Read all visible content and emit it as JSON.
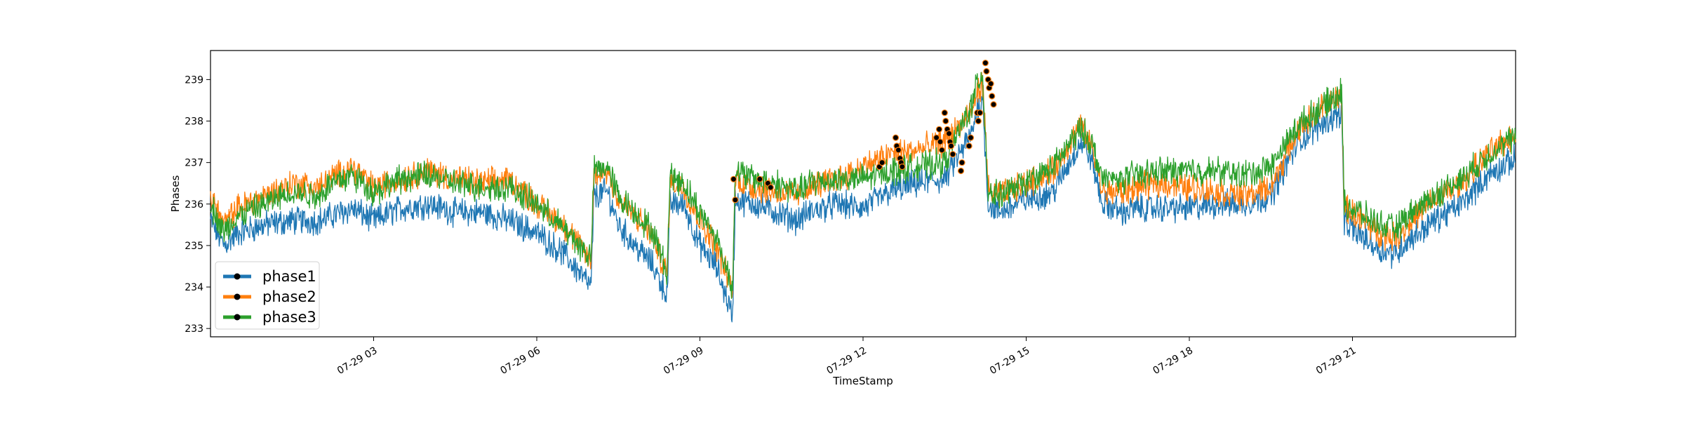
{
  "chart_data": {
    "type": "line",
    "title": "",
    "xlabel": "TimeStamp",
    "ylabel": "Phases",
    "x_range": [
      "07-29 00:00",
      "07-30 00:00"
    ],
    "ylim": [
      232.8,
      239.7
    ],
    "x_ticks": [
      {
        "label": "07-29 03",
        "hour": 3
      },
      {
        "label": "07-29 06",
        "hour": 6
      },
      {
        "label": "07-29 09",
        "hour": 9
      },
      {
        "label": "07-29 12",
        "hour": 12
      },
      {
        "label": "07-29 15",
        "hour": 15
      },
      {
        "label": "07-29 18",
        "hour": 18
      },
      {
        "label": "07-29 21",
        "hour": 21
      }
    ],
    "y_ticks": [
      233,
      234,
      235,
      236,
      237,
      238,
      239
    ],
    "grid": false,
    "legend": {
      "position": "lower-left"
    },
    "series": [
      {
        "name": "phase1",
        "color": "#1f77b4",
        "points": [
          [
            0.0,
            235.6
          ],
          [
            0.25,
            235.0
          ],
          [
            0.5,
            235.3
          ],
          [
            1.0,
            235.5
          ],
          [
            1.5,
            235.6
          ],
          [
            2.0,
            235.6
          ],
          [
            2.2,
            235.7
          ],
          [
            2.6,
            235.9
          ],
          [
            3.0,
            235.6
          ],
          [
            3.5,
            235.9
          ],
          [
            4.0,
            236.0
          ],
          [
            4.5,
            235.8
          ],
          [
            5.0,
            235.8
          ],
          [
            5.5,
            235.6
          ],
          [
            6.0,
            235.3
          ],
          [
            6.5,
            234.8
          ],
          [
            7.0,
            234.0
          ],
          [
            7.05,
            236.2
          ],
          [
            7.3,
            236.3
          ],
          [
            7.5,
            235.5
          ],
          [
            7.8,
            235.0
          ],
          [
            8.1,
            234.6
          ],
          [
            8.4,
            233.8
          ],
          [
            8.45,
            236.0
          ],
          [
            8.7,
            236.0
          ],
          [
            9.0,
            235.0
          ],
          [
            9.3,
            234.5
          ],
          [
            9.6,
            233.3
          ],
          [
            9.65,
            236.1
          ],
          [
            10.0,
            236.0
          ],
          [
            10.4,
            235.8
          ],
          [
            10.8,
            235.6
          ],
          [
            11.0,
            235.8
          ],
          [
            11.5,
            236.0
          ],
          [
            12.0,
            235.9
          ],
          [
            12.5,
            236.3
          ],
          [
            13.0,
            236.5
          ],
          [
            13.5,
            236.6
          ],
          [
            14.0,
            237.7
          ],
          [
            14.1,
            238.3
          ],
          [
            14.2,
            238.5
          ],
          [
            14.3,
            236.0
          ],
          [
            14.5,
            235.8
          ],
          [
            15.0,
            236.1
          ],
          [
            15.5,
            236.3
          ],
          [
            16.0,
            237.5
          ],
          [
            16.2,
            237.1
          ],
          [
            16.4,
            236.0
          ],
          [
            16.8,
            235.8
          ],
          [
            17.0,
            235.9
          ],
          [
            17.5,
            235.9
          ],
          [
            18.0,
            235.9
          ],
          [
            18.5,
            236.0
          ],
          [
            19.0,
            236.0
          ],
          [
            19.5,
            236.2
          ],
          [
            20.0,
            237.5
          ],
          [
            20.5,
            238.0
          ],
          [
            20.8,
            238.2
          ],
          [
            20.85,
            235.5
          ],
          [
            21.0,
            235.4
          ],
          [
            21.5,
            234.9
          ],
          [
            21.8,
            234.8
          ],
          [
            22.0,
            235.1
          ],
          [
            22.5,
            235.6
          ],
          [
            23.0,
            236.0
          ],
          [
            23.5,
            236.7
          ],
          [
            24.0,
            237.1
          ]
        ]
      },
      {
        "name": "phase2",
        "color": "#ff7f0e",
        "points": [
          [
            0.0,
            236.2
          ],
          [
            0.25,
            235.5
          ],
          [
            0.5,
            235.9
          ],
          [
            1.0,
            236.2
          ],
          [
            1.5,
            236.5
          ],
          [
            2.0,
            236.4
          ],
          [
            2.2,
            236.6
          ],
          [
            2.6,
            236.9
          ],
          [
            3.0,
            236.4
          ],
          [
            3.5,
            236.6
          ],
          [
            4.0,
            236.8
          ],
          [
            4.5,
            236.6
          ],
          [
            5.0,
            236.5
          ],
          [
            5.5,
            236.6
          ],
          [
            6.0,
            236.0
          ],
          [
            6.5,
            235.5
          ],
          [
            7.0,
            234.6
          ],
          [
            7.05,
            236.7
          ],
          [
            7.3,
            236.8
          ],
          [
            7.5,
            236.1
          ],
          [
            7.8,
            235.7
          ],
          [
            8.1,
            235.3
          ],
          [
            8.4,
            234.3
          ],
          [
            8.45,
            236.6
          ],
          [
            8.7,
            236.4
          ],
          [
            9.0,
            235.6
          ],
          [
            9.3,
            235.0
          ],
          [
            9.6,
            233.9
          ],
          [
            9.65,
            236.6
          ],
          [
            10.0,
            236.4
          ],
          [
            10.4,
            236.3
          ],
          [
            10.8,
            236.2
          ],
          [
            11.0,
            236.4
          ],
          [
            11.5,
            236.6
          ],
          [
            12.0,
            236.9
          ],
          [
            12.5,
            237.2
          ],
          [
            13.0,
            237.3
          ],
          [
            13.5,
            237.5
          ],
          [
            14.0,
            238.2
          ],
          [
            14.1,
            238.7
          ],
          [
            14.2,
            238.9
          ],
          [
            14.3,
            236.4
          ],
          [
            14.5,
            236.2
          ],
          [
            15.0,
            236.5
          ],
          [
            15.5,
            236.8
          ],
          [
            16.0,
            237.9
          ],
          [
            16.2,
            237.4
          ],
          [
            16.4,
            236.3
          ],
          [
            16.8,
            236.3
          ],
          [
            17.0,
            236.4
          ],
          [
            17.5,
            236.5
          ],
          [
            18.0,
            236.4
          ],
          [
            18.5,
            236.3
          ],
          [
            19.0,
            236.2
          ],
          [
            19.5,
            236.4
          ],
          [
            20.0,
            237.8
          ],
          [
            20.5,
            238.4
          ],
          [
            20.8,
            238.6
          ],
          [
            20.85,
            235.9
          ],
          [
            21.0,
            235.8
          ],
          [
            21.5,
            235.3
          ],
          [
            21.8,
            235.2
          ],
          [
            22.0,
            235.5
          ],
          [
            22.5,
            236.1
          ],
          [
            23.0,
            236.5
          ],
          [
            23.5,
            237.2
          ],
          [
            24.0,
            237.7
          ]
        ]
      },
      {
        "name": "phase3",
        "color": "#2ca02c",
        "points": [
          [
            0.0,
            236.0
          ],
          [
            0.25,
            235.3
          ],
          [
            0.5,
            235.7
          ],
          [
            1.0,
            236.0
          ],
          [
            1.5,
            236.3
          ],
          [
            2.0,
            236.2
          ],
          [
            2.2,
            236.5
          ],
          [
            2.6,
            236.7
          ],
          [
            3.0,
            236.3
          ],
          [
            3.5,
            236.6
          ],
          [
            4.0,
            236.7
          ],
          [
            4.5,
            236.5
          ],
          [
            5.0,
            236.4
          ],
          [
            5.5,
            236.4
          ],
          [
            6.0,
            236.0
          ],
          [
            6.5,
            235.4
          ],
          [
            7.0,
            234.7
          ],
          [
            7.05,
            236.8
          ],
          [
            7.3,
            236.9
          ],
          [
            7.5,
            236.2
          ],
          [
            7.8,
            235.8
          ],
          [
            8.1,
            235.4
          ],
          [
            8.4,
            234.4
          ],
          [
            8.45,
            236.7
          ],
          [
            8.7,
            236.5
          ],
          [
            9.0,
            235.8
          ],
          [
            9.3,
            235.2
          ],
          [
            9.6,
            234.0
          ],
          [
            9.65,
            236.8
          ],
          [
            10.0,
            236.6
          ],
          [
            10.4,
            236.5
          ],
          [
            10.8,
            236.3
          ],
          [
            11.0,
            236.5
          ],
          [
            11.5,
            236.6
          ],
          [
            12.0,
            236.6
          ],
          [
            12.5,
            236.8
          ],
          [
            13.0,
            236.9
          ],
          [
            13.5,
            237.0
          ],
          [
            14.0,
            238.4
          ],
          [
            14.1,
            238.9
          ],
          [
            14.2,
            239.1
          ],
          [
            14.3,
            236.3
          ],
          [
            14.5,
            236.2
          ],
          [
            15.0,
            236.5
          ],
          [
            15.5,
            236.9
          ],
          [
            16.0,
            237.8
          ],
          [
            16.2,
            237.5
          ],
          [
            16.4,
            236.6
          ],
          [
            16.8,
            236.6
          ],
          [
            17.0,
            236.7
          ],
          [
            17.5,
            236.8
          ],
          [
            18.0,
            236.8
          ],
          [
            18.5,
            236.8
          ],
          [
            19.0,
            236.7
          ],
          [
            19.5,
            236.9
          ],
          [
            20.0,
            237.9
          ],
          [
            20.5,
            238.4
          ],
          [
            20.8,
            238.7
          ],
          [
            20.85,
            236.0
          ],
          [
            21.0,
            235.9
          ],
          [
            21.5,
            235.5
          ],
          [
            21.8,
            235.4
          ],
          [
            22.0,
            235.7
          ],
          [
            22.5,
            236.2
          ],
          [
            23.0,
            236.6
          ],
          [
            23.5,
            237.2
          ],
          [
            24.0,
            237.6
          ]
        ]
      }
    ],
    "markers": {
      "fill": "#000000",
      "points": [
        [
          9.62,
          236.6
        ],
        [
          9.65,
          236.1
        ],
        [
          10.1,
          236.6
        ],
        [
          10.25,
          236.5
        ],
        [
          10.3,
          236.4
        ],
        [
          12.3,
          236.9
        ],
        [
          12.35,
          237.0
        ],
        [
          12.6,
          237.6
        ],
        [
          12.62,
          237.4
        ],
        [
          12.65,
          237.3
        ],
        [
          12.68,
          237.1
        ],
        [
          12.7,
          237.0
        ],
        [
          12.72,
          236.9
        ],
        [
          13.35,
          237.6
        ],
        [
          13.4,
          237.8
        ],
        [
          13.42,
          237.5
        ],
        [
          13.45,
          237.3
        ],
        [
          13.5,
          238.2
        ],
        [
          13.52,
          238.0
        ],
        [
          13.55,
          237.8
        ],
        [
          13.58,
          237.7
        ],
        [
          13.6,
          237.5
        ],
        [
          13.62,
          237.4
        ],
        [
          13.65,
          237.2
        ],
        [
          13.8,
          236.8
        ],
        [
          13.82,
          237.0
        ],
        [
          13.95,
          237.4
        ],
        [
          13.98,
          237.6
        ],
        [
          14.1,
          238.2
        ],
        [
          14.12,
          238.0
        ],
        [
          14.15,
          238.2
        ],
        [
          14.25,
          239.4
        ],
        [
          14.27,
          239.2
        ],
        [
          14.3,
          239.0
        ],
        [
          14.32,
          238.8
        ],
        [
          14.35,
          238.9
        ],
        [
          14.37,
          238.6
        ],
        [
          14.4,
          238.4
        ]
      ]
    }
  }
}
